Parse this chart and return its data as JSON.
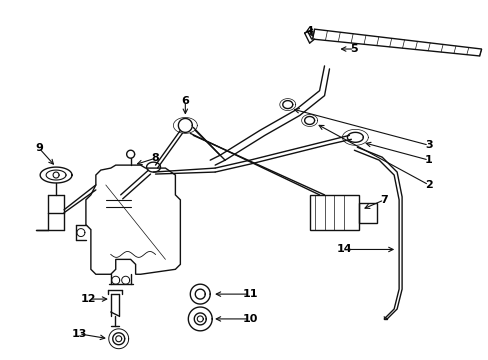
{
  "background_color": "#ffffff",
  "line_color": "#111111",
  "label_color": "#000000",
  "figsize": [
    4.89,
    3.6
  ],
  "dpi": 100
}
